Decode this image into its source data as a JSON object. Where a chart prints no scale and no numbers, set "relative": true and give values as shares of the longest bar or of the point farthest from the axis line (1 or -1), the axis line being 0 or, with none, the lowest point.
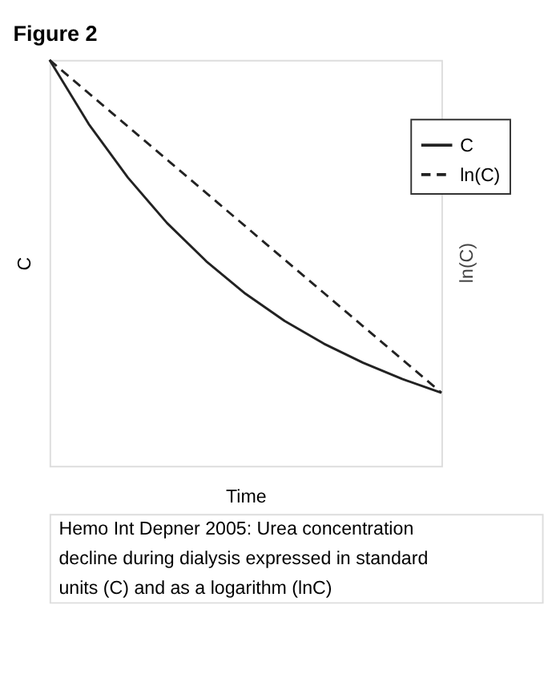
{
  "chart_data": {
    "type": "line",
    "title": "Figure 2",
    "xlabel": "Time",
    "ylabel": "C",
    "y2label": "ln(C)",
    "relative": true,
    "categories": [
      null,
      null,
      null,
      null,
      null,
      null,
      null,
      null,
      null,
      null,
      null
    ],
    "series": [
      {
        "name": "C",
        "color": "#222222",
        "line_style": "solid",
        "values": [
          1,
          0.842,
          0.71,
          0.598,
          0.504,
          0.424,
          0.357,
          0.301,
          0.254,
          0.214,
          0.18
        ]
      },
      {
        "name": "ln(C)",
        "color": "#222222",
        "line_style": "dashed",
        "values": [
          1,
          0.918,
          0.836,
          0.754,
          0.672,
          0.59,
          0.508,
          0.426,
          0.344,
          0.262,
          0.18
        ]
      }
    ],
    "legend": "top right",
    "grid": false,
    "marker": "none",
    "annotations": [
      "Hemo Int Depner 2005: Urea concentration decline during dialysis expressed in standard units (C) and as a logarithm (lnC)"
    ]
  }
}
